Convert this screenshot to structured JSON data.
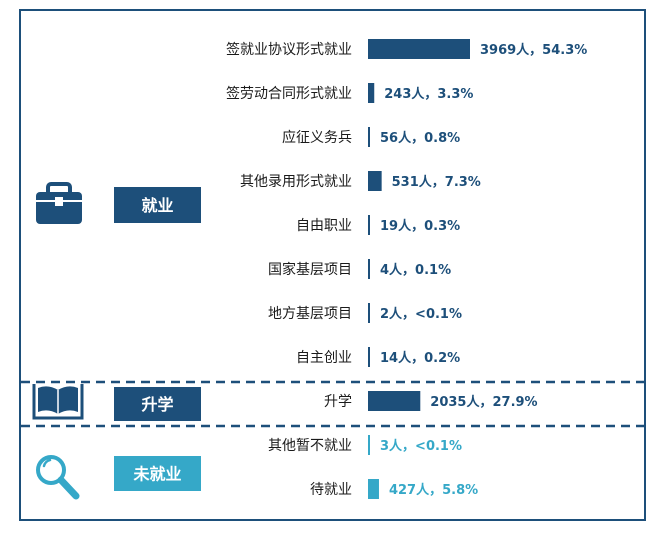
{
  "colors": {
    "employed": "#1d4f7a",
    "unemployed": "#35a8c8",
    "border": "#1d4f7a",
    "divider": "#1d4f7a"
  },
  "sections": [
    {
      "key": "employed",
      "label": "就业",
      "icon": "briefcase-icon",
      "color": "#1d4f7a"
    },
    {
      "key": "study",
      "label": "升学",
      "icon": "open-book-icon",
      "color": "#1d4f7a"
    },
    {
      "key": "unemployed",
      "label": "未就业",
      "icon": "magnifier-icon",
      "color": "#35a8c8"
    }
  ],
  "chart_data": {
    "type": "bar",
    "orientation": "horizontal",
    "categories": [
      "签就业协议形式就业",
      "签劳动合同形式就业",
      "应征义务兵",
      "其他录用形式就业",
      "自由职业",
      "国家基层项目",
      "地方基层项目",
      "自主创业",
      "升学",
      "其他暂不就业",
      "待就业"
    ],
    "values": [
      3969,
      243,
      56,
      531,
      19,
      4,
      2,
      14,
      2035,
      3,
      427
    ],
    "percents": [
      "54.3%",
      "3.3%",
      "0.8%",
      "7.3%",
      "0.3%",
      "0.1%",
      "<0.1%",
      "0.2%",
      "27.9%",
      "<0.1%",
      "5.8%"
    ],
    "value_labels": [
      "3969人，54.3%",
      "243人，3.3%",
      "56人，0.8%",
      "531人，7.3%",
      "19人，0.3%",
      "4人，0.1%",
      "2人，<0.1%",
      "14人，0.2%",
      "2035人，27.9%",
      "3人，<0.1%",
      "427人，5.8%"
    ],
    "groups": [
      "employed",
      "employed",
      "employed",
      "employed",
      "employed",
      "employed",
      "employed",
      "employed",
      "study",
      "unemployed",
      "unemployed"
    ],
    "xlim": [
      0,
      3969
    ]
  }
}
